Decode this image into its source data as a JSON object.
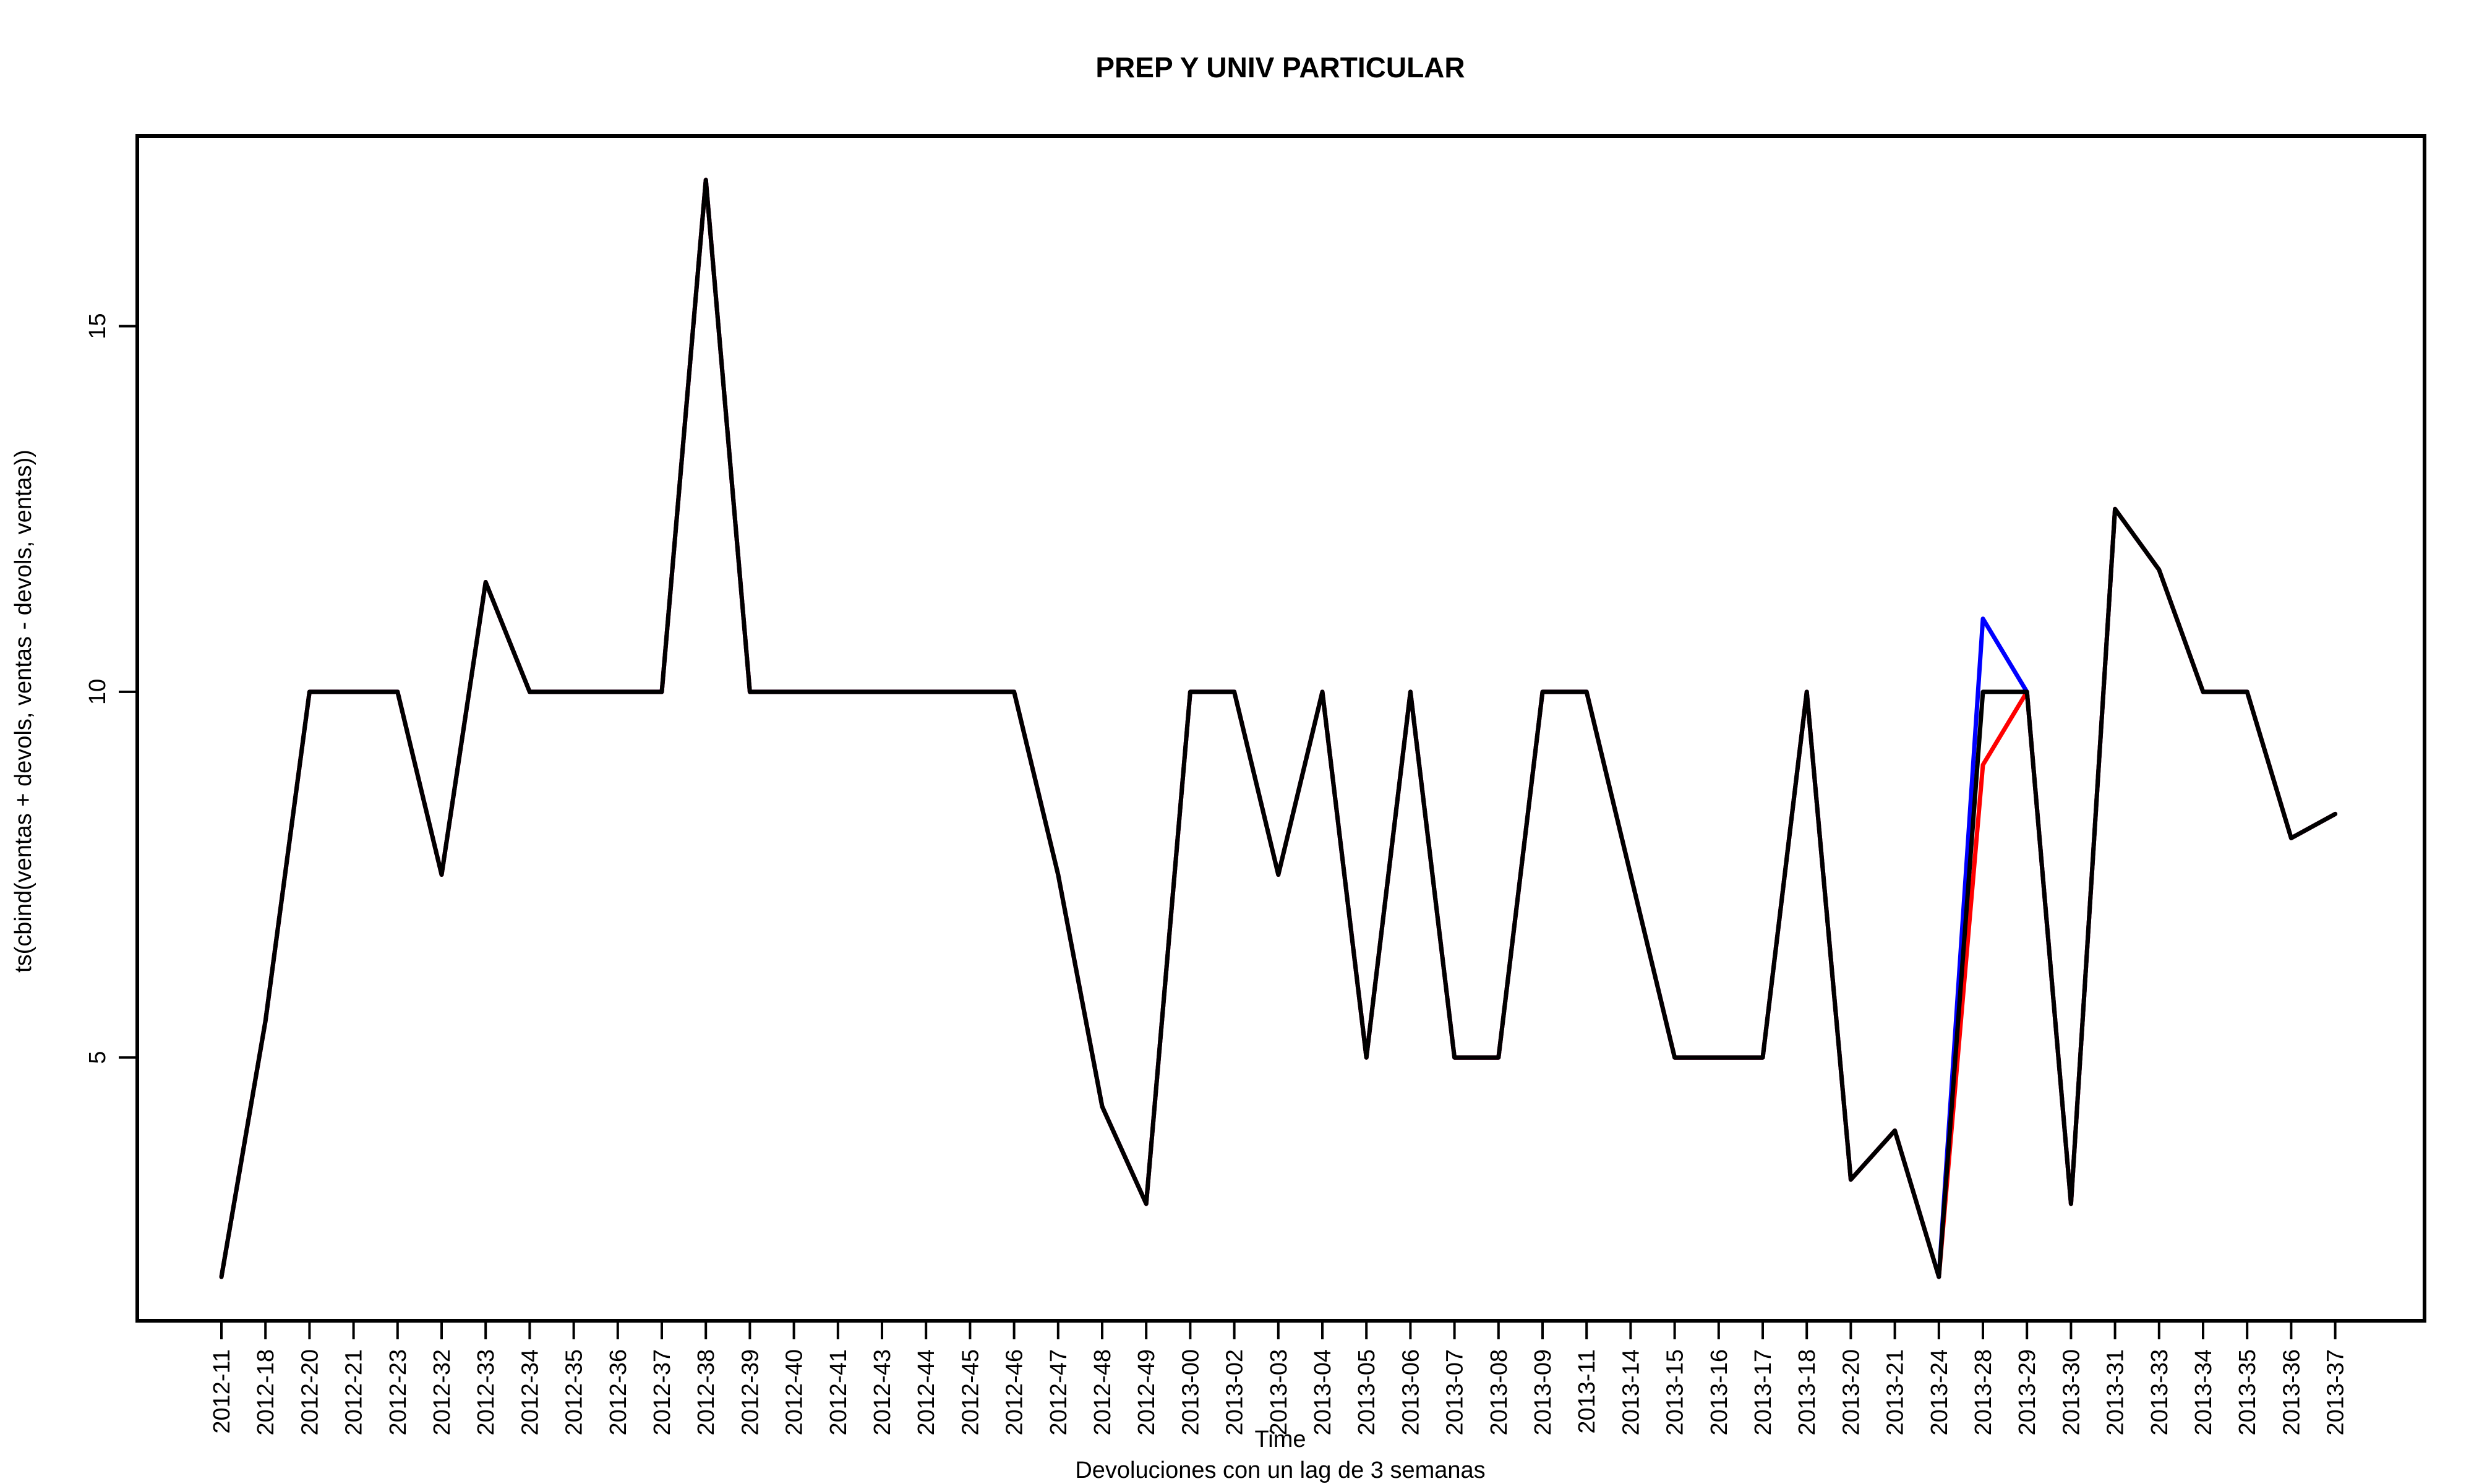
{
  "chart_data": {
    "type": "line",
    "title": "PREP Y UNIV PARTICULAR",
    "xlabel": "Time",
    "ylabel": "ts(cbind(ventas + devols, ventas - devols, ventas))",
    "caption": "Devoluciones con un lag de 3 semanas",
    "ylim": [
      1.4,
      17.6
    ],
    "yticks": [
      5,
      10,
      15
    ],
    "grid": false,
    "categories": [
      "2012-11",
      "2012-18",
      "2012-20",
      "2012-21",
      "2012-23",
      "2012-32",
      "2012-33",
      "2012-34",
      "2012-35",
      "2012-36",
      "2012-37",
      "2012-38",
      "2012-39",
      "2012-40",
      "2012-41",
      "2012-43",
      "2012-44",
      "2012-45",
      "2012-46",
      "2012-47",
      "2012-48",
      "2012-49",
      "2013-00",
      "2013-02",
      "2013-03",
      "2013-04",
      "2013-05",
      "2013-06",
      "2013-07",
      "2013-08",
      "2013-09",
      "2013-11",
      "2013-14",
      "2013-15",
      "2013-16",
      "2013-17",
      "2013-18",
      "2013-20",
      "2013-21",
      "2013-24",
      "2013-28",
      "2013-29",
      "2013-30",
      "2013-31",
      "2013-33",
      "2013-34",
      "2013-35",
      "2013-36",
      "2013-37"
    ],
    "series": [
      {
        "color": "#0000ff",
        "values": [
          2,
          5.5,
          10,
          10,
          10,
          7.5,
          11.5,
          10,
          10,
          10,
          10,
          17,
          10,
          10,
          10,
          10,
          10,
          10,
          10,
          7.5,
          4.33,
          3,
          10,
          10,
          7.5,
          10,
          5,
          10,
          5,
          5,
          10,
          10,
          7.5,
          5,
          5,
          5,
          10,
          3.33,
          4,
          2,
          11,
          10,
          3,
          12.5,
          11.67,
          10,
          10,
          8,
          8.33
        ]
      },
      {
        "color": "#ff0000",
        "values": [
          2,
          5.5,
          10,
          10,
          10,
          7.5,
          11.5,
          10,
          10,
          10,
          10,
          17,
          10,
          10,
          10,
          10,
          10,
          10,
          10,
          7.5,
          4.33,
          3,
          10,
          10,
          7.5,
          10,
          5,
          10,
          5,
          5,
          10,
          10,
          7.5,
          5,
          5,
          5,
          10,
          3.33,
          4,
          2,
          9,
          10,
          3,
          12.5,
          11.67,
          10,
          10,
          8,
          8.33
        ]
      },
      {
        "color": "#000000",
        "values": [
          2,
          5.5,
          10,
          10,
          10,
          7.5,
          11.5,
          10,
          10,
          10,
          10,
          17,
          10,
          10,
          10,
          10,
          10,
          10,
          10,
          7.5,
          4.33,
          3,
          10,
          10,
          7.5,
          10,
          5,
          10,
          5,
          5,
          10,
          10,
          7.5,
          5,
          5,
          5,
          10,
          3.33,
          4,
          2,
          10,
          10,
          3,
          12.5,
          11.67,
          10,
          10,
          8,
          8.33
        ]
      }
    ]
  }
}
